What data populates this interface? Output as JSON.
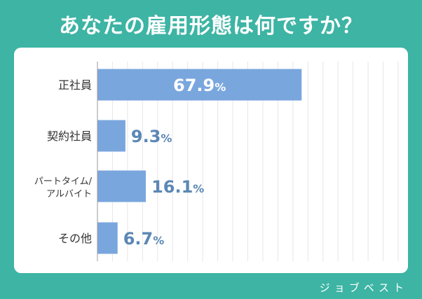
{
  "title": "あなたの雇用形態は何ですか？",
  "brand": "ジョブベスト",
  "colors": {
    "background": "#3db4a4",
    "bar": "#7aa6de",
    "label_outside": "#5b87b5",
    "label_inside": "#ffffff",
    "grid": "#e6e6e6",
    "category_text": "#333333"
  },
  "chart_data": {
    "type": "bar",
    "orientation": "horizontal",
    "title": "あなたの雇用形態は何ですか？",
    "categories": [
      [
        "正社員"
      ],
      [
        "契約社員"
      ],
      [
        "パートタイム/",
        "アルバイト"
      ],
      [
        "その他"
      ]
    ],
    "values": [
      67.9,
      9.3,
      16.1,
      6.7
    ],
    "value_labels": [
      "67.9",
      "9.3",
      "16.1",
      "6.7"
    ],
    "unit": "%",
    "xlim": [
      0,
      100
    ],
    "grid": true
  }
}
